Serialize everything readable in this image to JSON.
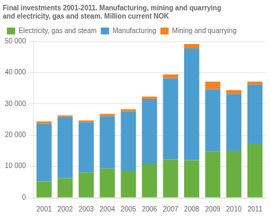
{
  "chart_data": {
    "type": "bar",
    "title": [
      "Final investments 2001-2011. Manufacturing, mining and quarrying",
      "and electricity, gas and steam. Million current NOK"
    ],
    "categories": [
      "2001",
      "2002",
      "2003",
      "2004",
      "2005",
      "2006",
      "2007",
      "2008",
      "2009",
      "2010",
      "2011"
    ],
    "series": [
      {
        "name": "Electricity, gas and steam",
        "color": "#6ab040",
        "values": [
          5200,
          6300,
          8100,
          9300,
          8600,
          10800,
          12200,
          12000,
          14800,
          15000,
          17200
        ]
      },
      {
        "name": "Manufacturing",
        "color": "#4d9ed0",
        "values": [
          18500,
          19500,
          16100,
          16800,
          19000,
          20700,
          26000,
          35800,
          19900,
          18200,
          19000
        ]
      },
      {
        "name": "Mining and quarrying",
        "color": "#f5821f",
        "values": [
          700,
          500,
          500,
          700,
          700,
          800,
          1200,
          1300,
          2400,
          1200,
          900
        ]
      }
    ],
    "stacked": true,
    "ylim": [
      0,
      50000
    ],
    "yticks": [
      0,
      {
        "value": 10000,
        "label": "10 000"
      },
      {
        "value": 20000,
        "label": "20 000"
      },
      {
        "value": 30000,
        "label": "30 000"
      },
      {
        "value": 40000,
        "label": "40 000"
      },
      {
        "value": 50000,
        "label": "50 000"
      }
    ],
    "grid": true,
    "legend": "upper left"
  }
}
